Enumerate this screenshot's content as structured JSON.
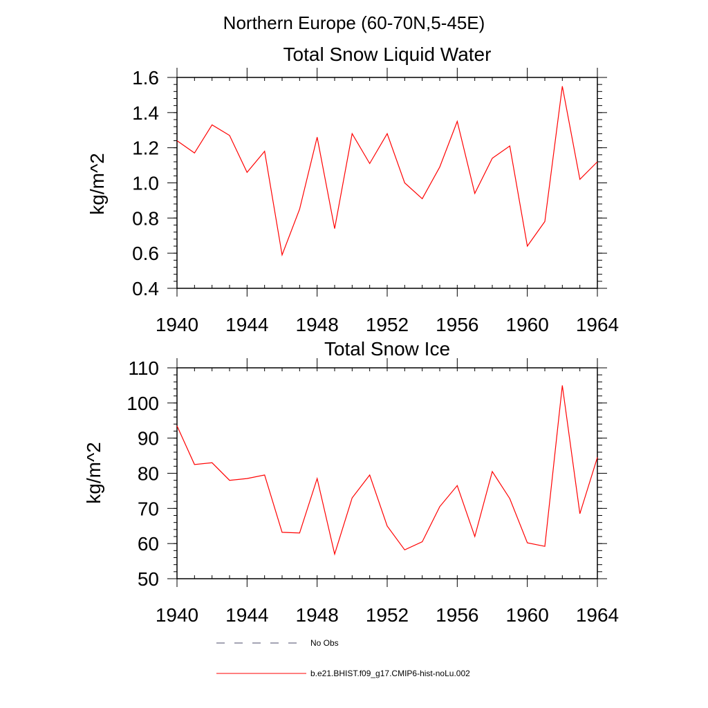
{
  "page_title": "Northern Europe (60-70N,5-45E)",
  "chart_data": [
    {
      "type": "line",
      "title": "Total Snow Liquid Water",
      "ylabel": "kg/m^2",
      "xlim": [
        1940,
        1964
      ],
      "ylim": [
        0.4,
        1.6
      ],
      "x_ticks": [
        1940,
        1944,
        1948,
        1952,
        1956,
        1960,
        1964
      ],
      "y_ticks": [
        "0.4",
        "0.6",
        "0.8",
        "1.0",
        "1.2",
        "1.4",
        "1.6"
      ],
      "y_tick_values": [
        0.4,
        0.6,
        0.8,
        1.0,
        1.2,
        1.4,
        1.6
      ],
      "x": [
        1940,
        1941,
        1942,
        1943,
        1944,
        1945,
        1946,
        1947,
        1948,
        1949,
        1950,
        1951,
        1952,
        1953,
        1954,
        1955,
        1956,
        1957,
        1958,
        1959,
        1960,
        1961,
        1962,
        1963,
        1964
      ],
      "series": [
        {
          "name": "b.e21.BHIST.f09_g17.CMIP6-hist-noLu.002",
          "color": "#ff0000",
          "values": [
            1.24,
            1.17,
            1.33,
            1.27,
            1.06,
            1.18,
            0.59,
            0.85,
            1.26,
            0.74,
            1.28,
            1.11,
            1.28,
            1.0,
            0.91,
            1.09,
            1.35,
            0.94,
            1.14,
            1.21,
            0.64,
            0.78,
            1.55,
            1.02,
            1.12
          ]
        }
      ]
    },
    {
      "type": "line",
      "title": "Total Snow Ice",
      "ylabel": "kg/m^2",
      "xlim": [
        1940,
        1964
      ],
      "ylim": [
        50,
        110
      ],
      "x_ticks": [
        1940,
        1944,
        1948,
        1952,
        1956,
        1960,
        1964
      ],
      "y_ticks": [
        "50",
        "60",
        "70",
        "80",
        "90",
        "100",
        "110"
      ],
      "y_tick_values": [
        50,
        60,
        70,
        80,
        90,
        100,
        110
      ],
      "x": [
        1940,
        1941,
        1942,
        1943,
        1944,
        1945,
        1946,
        1947,
        1948,
        1949,
        1950,
        1951,
        1952,
        1953,
        1954,
        1955,
        1956,
        1957,
        1958,
        1959,
        1960,
        1961,
        1962,
        1963,
        1964
      ],
      "series": [
        {
          "name": "b.e21.BHIST.f09_g17.CMIP6-hist-noLu.002",
          "color": "#ff0000",
          "values": [
            93.5,
            82.5,
            83.0,
            78.0,
            78.5,
            79.5,
            63.2,
            63.0,
            78.5,
            57.0,
            73.0,
            79.5,
            65.0,
            58.2,
            60.5,
            70.5,
            76.5,
            62.0,
            80.5,
            72.8,
            60.2,
            59.2,
            105.0,
            68.5,
            84.5
          ]
        }
      ]
    }
  ],
  "legend": [
    {
      "label": "No Obs",
      "style": "dashed",
      "color": "#4a4a6a"
    },
    {
      "label": "b.e21.BHIST.f09_g17.CMIP6-hist-noLu.002",
      "style": "solid",
      "color": "#ff0000"
    }
  ]
}
